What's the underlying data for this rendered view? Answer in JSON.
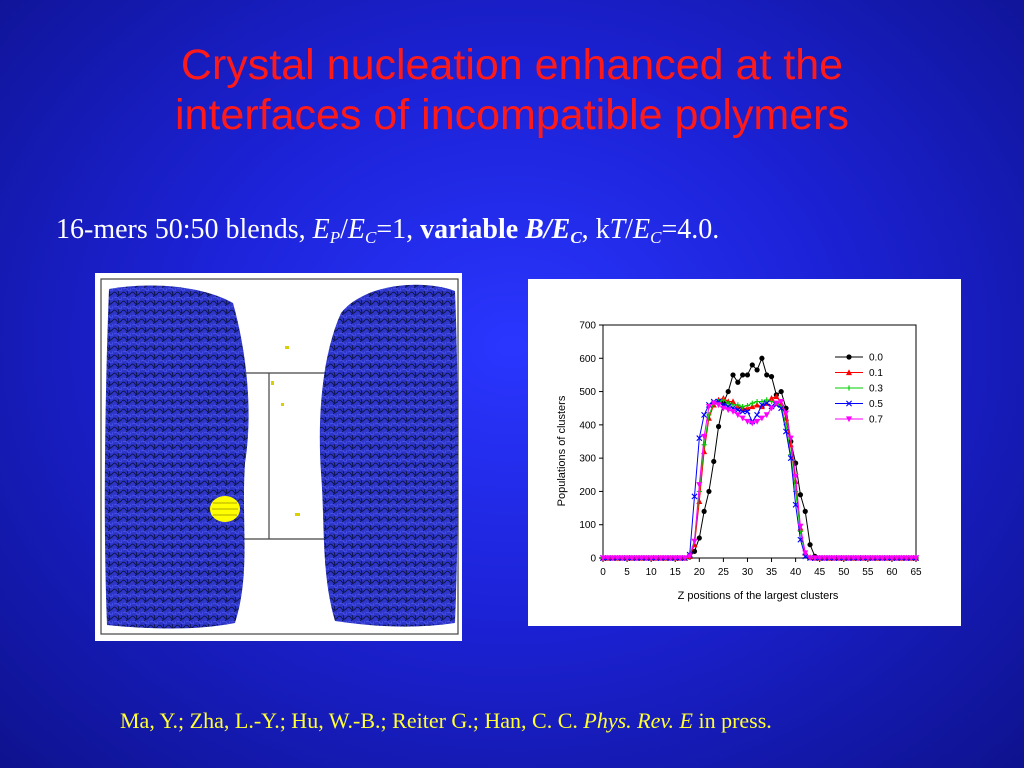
{
  "slide": {
    "title_line1": "Crystal nucleation enhanced at the",
    "title_line2": "interfaces of incompatible polymers",
    "subtitle": {
      "part1": "16-mers 50:50 blends, ",
      "ep": "E",
      "ep_sub": "P",
      "slash1": "/",
      "ec1": "E",
      "ec1_sub": "C",
      "eq1": "=1, ",
      "bold_variable": "variable ",
      "b_ec": "B/E",
      "b_ec_sub": "C",
      "comma": ", ",
      "k": "k",
      "t": "T",
      "slash2": "/",
      "ec2": "E",
      "ec2_sub": "C",
      "eq2": "=4.0."
    },
    "citation": {
      "authors": "Ma, Y.; Zha, L.-Y.; Hu, W.-B.; Reiter G.; Han, C. C.  ",
      "journal": "Phys. Rev. E",
      "status": " in press."
    },
    "colors": {
      "title": "#ff1a1a",
      "citation": "#ffff33",
      "polymer": "#2b35c4",
      "crystal": "#ffff00"
    }
  },
  "chart_data": {
    "type": "line",
    "xlabel": "Z positions of the largest clusters",
    "ylabel": "Populations of clusters",
    "xlim": [
      0,
      65
    ],
    "ylim": [
      0,
      700
    ],
    "xticks": [
      0,
      5,
      10,
      15,
      20,
      25,
      30,
      35,
      40,
      45,
      50,
      55,
      60,
      65
    ],
    "yticks": [
      0,
      100,
      200,
      300,
      400,
      500,
      600,
      700
    ],
    "legend_position": "top-right",
    "x": [
      0,
      1,
      2,
      3,
      4,
      5,
      6,
      7,
      8,
      9,
      10,
      11,
      12,
      13,
      14,
      15,
      16,
      17,
      18,
      19,
      20,
      21,
      22,
      23,
      24,
      25,
      26,
      27,
      28,
      29,
      30,
      31,
      32,
      33,
      34,
      35,
      36,
      37,
      38,
      39,
      40,
      41,
      42,
      43,
      44,
      45,
      46,
      47,
      48,
      49,
      50,
      51,
      52,
      53,
      54,
      55,
      56,
      57,
      58,
      59,
      60,
      61,
      62,
      63,
      64,
      65
    ],
    "series": [
      {
        "name": "0.0",
        "color": "#000000",
        "marker": "circle",
        "values": [
          0,
          0,
          0,
          0,
          0,
          0,
          0,
          0,
          0,
          0,
          0,
          0,
          0,
          0,
          0,
          0,
          0,
          0,
          3,
          20,
          60,
          140,
          200,
          290,
          395,
          465,
          500,
          550,
          528,
          550,
          550,
          580,
          565,
          600,
          550,
          545,
          490,
          500,
          450,
          350,
          285,
          190,
          140,
          40,
          5,
          0,
          0,
          0,
          0,
          0,
          0,
          0,
          0,
          0,
          0,
          0,
          0,
          0,
          0,
          0,
          0,
          0,
          0,
          0,
          0,
          0
        ]
      },
      {
        "name": "0.1",
        "color": "#ff0000",
        "marker": "triangle-up",
        "values": [
          0,
          0,
          0,
          0,
          0,
          0,
          0,
          0,
          0,
          0,
          0,
          0,
          0,
          0,
          0,
          0,
          0,
          0,
          5,
          40,
          170,
          320,
          420,
          460,
          475,
          480,
          470,
          470,
          455,
          450,
          450,
          455,
          460,
          455,
          465,
          480,
          485,
          465,
          420,
          340,
          230,
          90,
          15,
          2,
          0,
          0,
          0,
          0,
          0,
          0,
          0,
          0,
          0,
          0,
          0,
          0,
          0,
          0,
          0,
          0,
          0,
          0,
          0,
          0,
          0,
          0
        ]
      },
      {
        "name": "0.3",
        "color": "#00cc00",
        "marker": "plus",
        "values": [
          0,
          0,
          0,
          0,
          0,
          0,
          0,
          0,
          0,
          0,
          0,
          0,
          0,
          0,
          0,
          0,
          0,
          0,
          5,
          55,
          200,
          340,
          430,
          465,
          470,
          475,
          465,
          460,
          460,
          455,
          458,
          465,
          470,
          470,
          475,
          470,
          465,
          455,
          400,
          310,
          200,
          80,
          10,
          1,
          0,
          0,
          0,
          0,
          0,
          0,
          0,
          0,
          0,
          0,
          0,
          0,
          0,
          0,
          0,
          0,
          0,
          0,
          0,
          0,
          0,
          0
        ]
      },
      {
        "name": "0.5",
        "color": "#0000ff",
        "marker": "cross",
        "values": [
          0,
          0,
          0,
          0,
          0,
          0,
          0,
          0,
          0,
          0,
          0,
          0,
          0,
          0,
          0,
          0,
          0,
          0,
          10,
          185,
          360,
          430,
          460,
          470,
          470,
          460,
          455,
          450,
          445,
          440,
          440,
          410,
          430,
          460,
          465,
          455,
          460,
          450,
          380,
          300,
          160,
          55,
          5,
          0,
          0,
          0,
          0,
          0,
          0,
          0,
          0,
          0,
          0,
          0,
          0,
          0,
          0,
          0,
          0,
          0,
          0,
          0,
          0,
          0,
          0,
          0
        ]
      },
      {
        "name": "0.7",
        "color": "#ff00ff",
        "marker": "triangle-down",
        "values": [
          0,
          0,
          0,
          0,
          0,
          0,
          0,
          0,
          0,
          0,
          0,
          0,
          0,
          0,
          0,
          0,
          0,
          0,
          5,
          50,
          220,
          365,
          455,
          465,
          460,
          450,
          445,
          440,
          430,
          420,
          410,
          405,
          410,
          420,
          430,
          450,
          465,
          470,
          435,
          360,
          245,
          95,
          15,
          0,
          0,
          0,
          0,
          0,
          0,
          0,
          0,
          0,
          0,
          0,
          0,
          0,
          0,
          0,
          0,
          0,
          0,
          0,
          0,
          0,
          0,
          0
        ]
      }
    ]
  }
}
